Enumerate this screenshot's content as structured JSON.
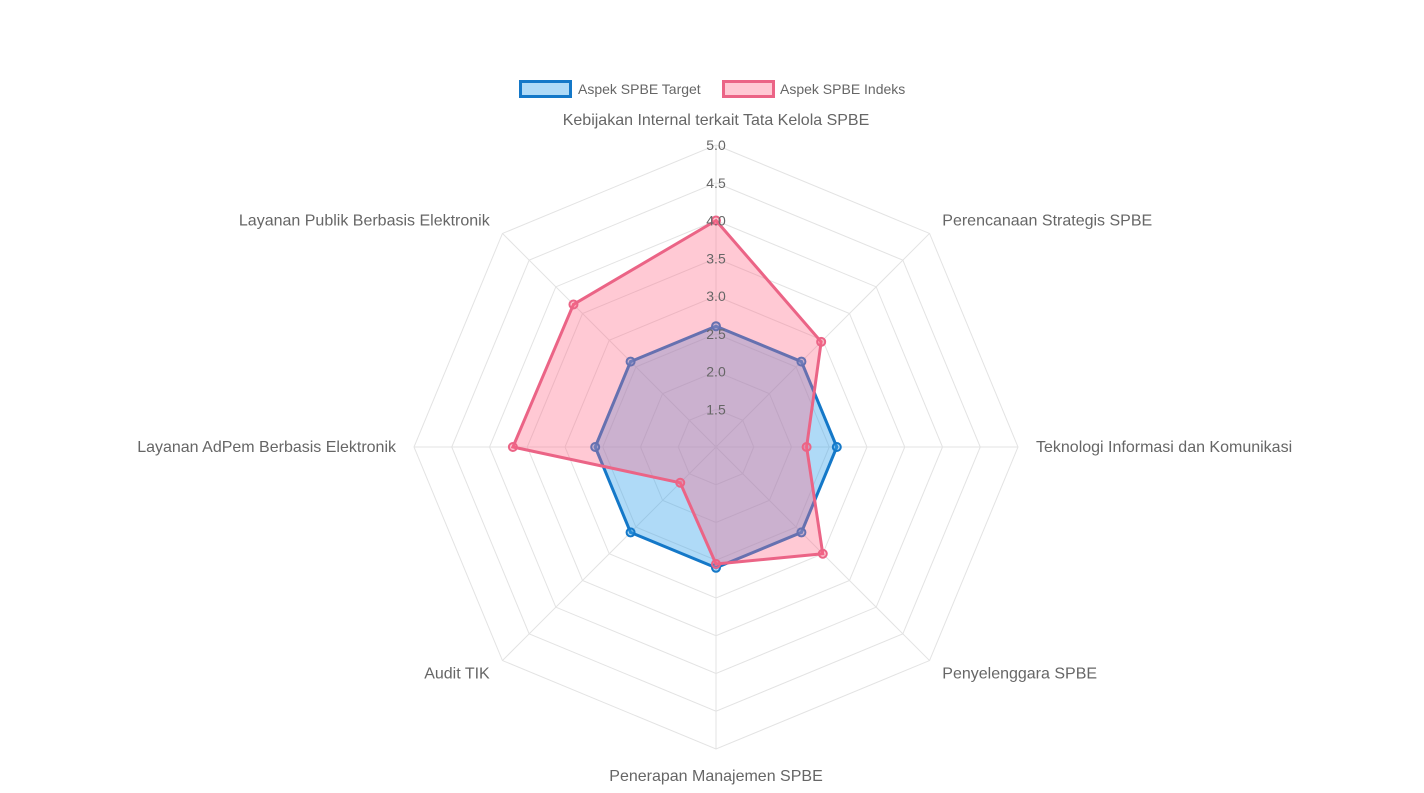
{
  "chart_data": {
    "type": "radar",
    "labels": [
      "Kebijakan Internal terkait Tata Kelola SPBE",
      "Perencanaan Strategis SPBE",
      "Teknologi Informasi dan Komunikasi",
      "Penyelenggara SPBE",
      "Penerapan Manajemen SPBE",
      "Audit TIK",
      "Layanan AdPem Berbasis Elektronik",
      "Layanan Publik Berbasis Elektronik"
    ],
    "series": [
      {
        "name": "Aspek SPBE Target",
        "values": [
          2.6,
          2.6,
          2.6,
          2.6,
          2.6,
          2.6,
          2.6,
          2.6
        ],
        "color": "#1478c8",
        "fill": "rgba(54,162,235,0.4)"
      },
      {
        "name": "Aspek SPBE Indeks",
        "values": [
          4.0,
          2.97,
          2.2,
          3.0,
          2.55,
          1.67,
          3.69,
          3.67
        ],
        "color": "#eb6486",
        "fill": "rgba(255,99,132,0.35)"
      }
    ],
    "r_min": 1.0,
    "r_max": 5.0,
    "ticks": [
      "1.5",
      "2.0",
      "2.5",
      "3.0",
      "3.5",
      "4.0",
      "4.5",
      "5.0"
    ],
    "legend_position": "top"
  }
}
